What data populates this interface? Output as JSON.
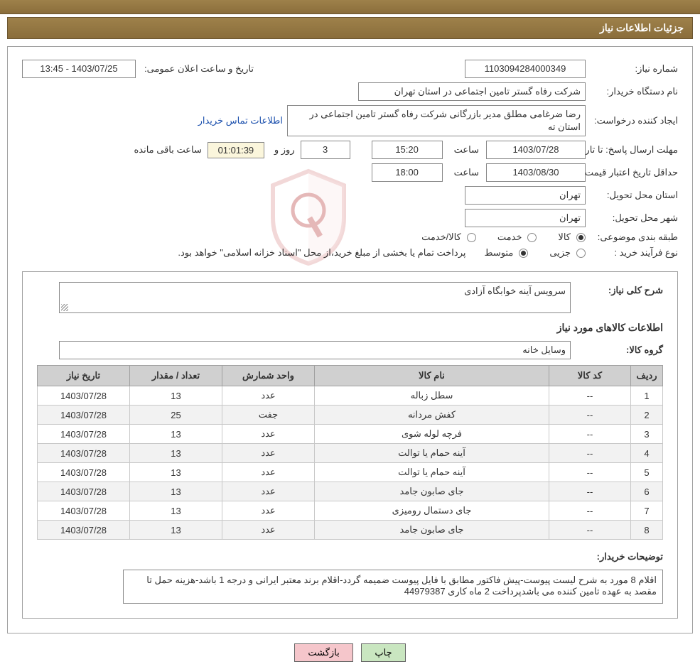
{
  "header": {
    "title": "جزئیات اطلاعات نیاز"
  },
  "form": {
    "need_no_label": "شماره نیاز:",
    "need_no": "1103094284000349",
    "announce_label": "تاریخ و ساعت اعلان عمومی:",
    "announce_value": "1403/07/25 - 13:45",
    "buyer_org_label": "نام دستگاه خریدار:",
    "buyer_org": "شرکت رفاه گستر تامین اجتماعی در استان تهران",
    "requester_label": "ایجاد کننده درخواست:",
    "requester": "رضا ضرغامی مطلق مدیر بازرگانی شرکت رفاه گستر تامین اجتماعی در استان ته",
    "buyer_contact_link": "اطلاعات تماس خریدار",
    "deadline_label": "مهلت ارسال پاسخ: تا تاریخ:",
    "deadline_date": "1403/07/28",
    "time_word": "ساعت",
    "deadline_time": "15:20",
    "days_remaining": "3",
    "days_and_word": "روز و",
    "countdown": "01:01:39",
    "remaining_word": "ساعت باقی مانده",
    "validity_label": "حداقل تاریخ اعتبار قیمت: تا تاریخ:",
    "validity_date": "1403/08/30",
    "validity_time": "18:00",
    "delivery_province_label": "استان محل تحویل:",
    "delivery_province": "تهران",
    "delivery_city_label": "شهر محل تحویل:",
    "delivery_city": "تهران",
    "subject_class_label": "طبقه بندی موضوعی:",
    "opt_goods": "کالا",
    "opt_service": "خدمت",
    "opt_goods_service": "کالا/خدمت",
    "process_label": "نوع فرآیند خرید :",
    "opt_partial": "جزیی",
    "opt_medium": "متوسط",
    "process_note": "پرداخت تمام یا بخشی از مبلغ خرید،از محل \"اسناد خزانه اسلامی\" خواهد بود."
  },
  "detail": {
    "need_desc_label": "شرح کلی نیاز:",
    "need_desc": "سرویس آینه خوابگاه آزادی",
    "items_title": "اطلاعات کالاهای مورد نیاز",
    "group_label": "گروه کالا:",
    "group": "وسایل خانه",
    "columns": [
      "ردیف",
      "کد کالا",
      "نام کالا",
      "واحد شمارش",
      "تعداد / مقدار",
      "تاریخ نیاز"
    ],
    "rows": [
      [
        "1",
        "--",
        "سطل زباله",
        "عدد",
        "13",
        "1403/07/28"
      ],
      [
        "2",
        "--",
        "کفش مردانه",
        "جفت",
        "25",
        "1403/07/28"
      ],
      [
        "3",
        "--",
        "فرچه لوله شوی",
        "عدد",
        "13",
        "1403/07/28"
      ],
      [
        "4",
        "--",
        "آینه حمام یا توالت",
        "عدد",
        "13",
        "1403/07/28"
      ],
      [
        "5",
        "--",
        "آینه حمام یا توالت",
        "عدد",
        "13",
        "1403/07/28"
      ],
      [
        "6",
        "--",
        "جای صابون جامد",
        "عدد",
        "13",
        "1403/07/28"
      ],
      [
        "7",
        "--",
        "جای دستمال رومیزی",
        "عدد",
        "13",
        "1403/07/28"
      ],
      [
        "8",
        "--",
        "جای صابون جامد",
        "عدد",
        "13",
        "1403/07/28"
      ]
    ],
    "buyer_notes_label": "توضیحات خریدار:",
    "buyer_notes": "اقلام 8 مورد به شرح لیست پیوست-پیش فاکتور مطابق با فایل پیوست ضمیمه گردد-اقلام برند معتبر ایرانی و درجه 1 باشد-هزینه حمل تا مقصد به عهده تامین کننده می باشدپرداخت 2 ماه کاری 44979387"
  },
  "footer": {
    "print": "چاپ",
    "back": "بازگشت"
  },
  "col_widths": [
    "45px",
    "115px",
    "auto",
    "130px",
    "130px",
    "130px"
  ]
}
